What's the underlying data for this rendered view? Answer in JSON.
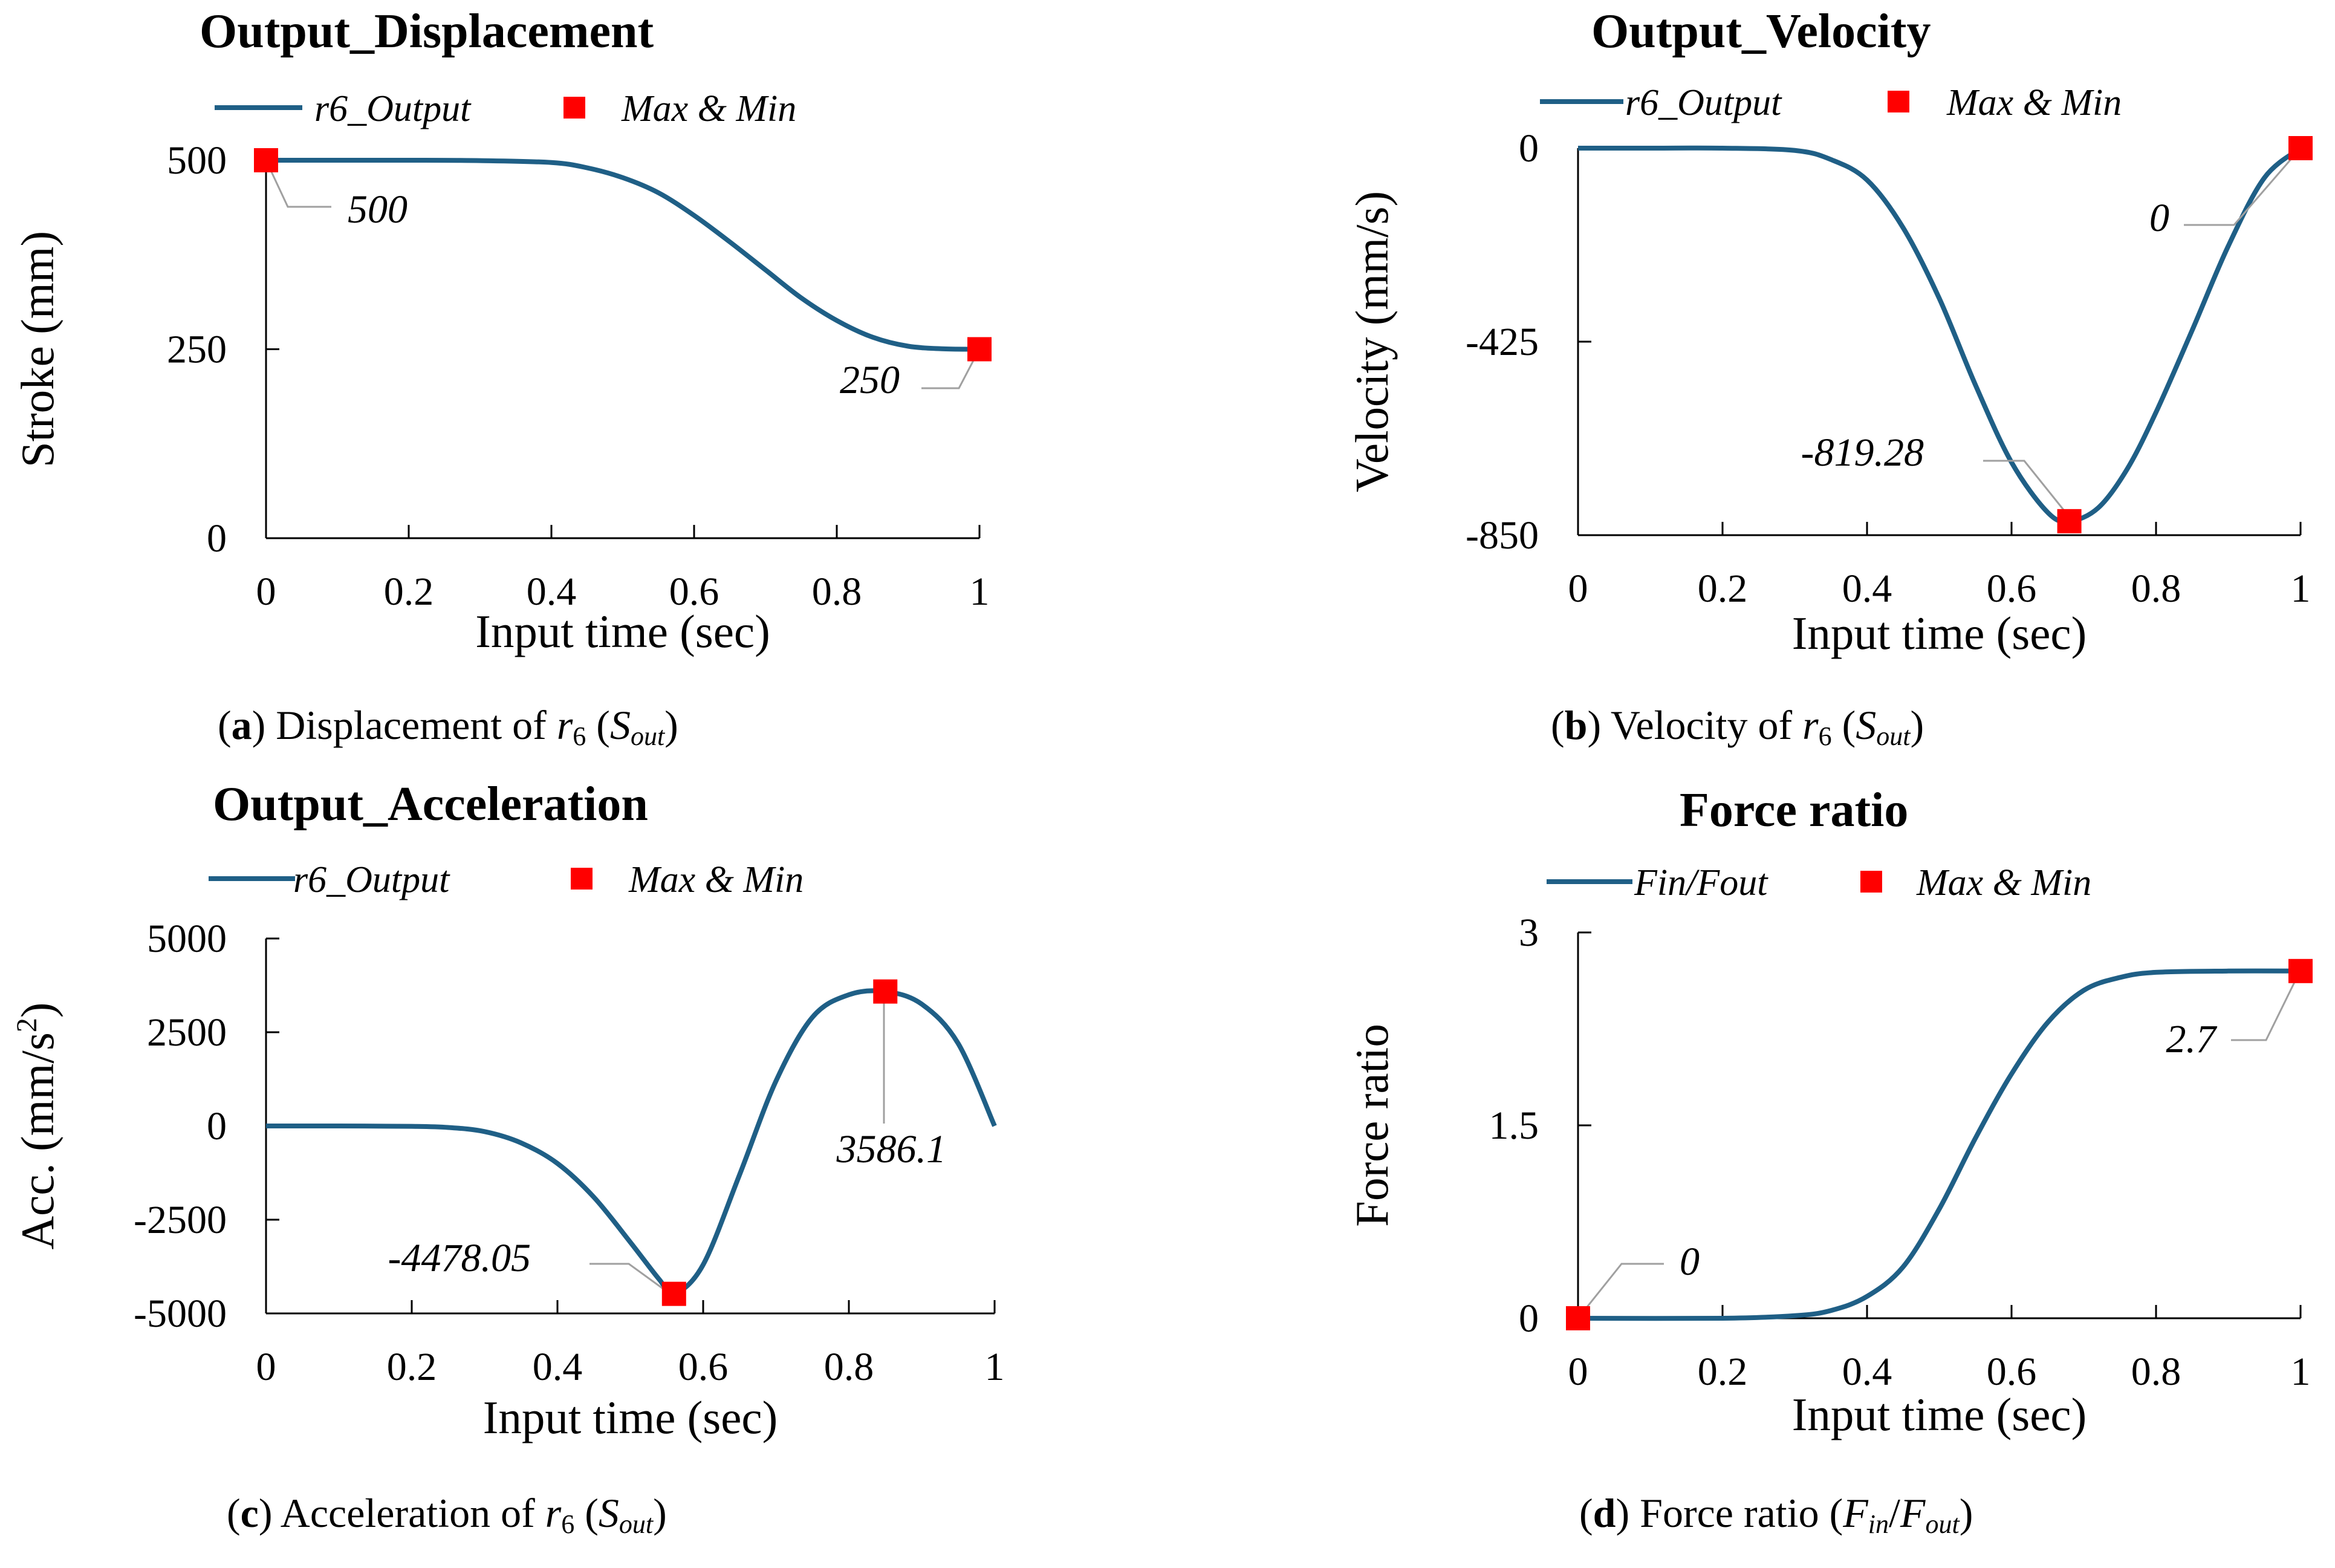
{
  "palette": {
    "line": "#1F5F86",
    "marker": "#FF0000",
    "axis": "#000000",
    "leader": "#A0A0A0"
  },
  "chart_data": [
    {
      "type": "line",
      "title": "Output_Displacement",
      "xlabel": "Input time (sec)",
      "ylabel": "Stroke (mm)",
      "xlim": [
        0,
        1
      ],
      "ylim": [
        0,
        500
      ],
      "xticks": [
        "0",
        "0.2",
        "0.4",
        "0.6",
        "0.8",
        "1"
      ],
      "yticks": [
        "0",
        "250",
        "500"
      ],
      "legend": [
        "r6_Output",
        "Max & Min"
      ],
      "series": [
        {
          "name": "r6_Output",
          "x": [
            0,
            0.1,
            0.2,
            0.3,
            0.4,
            0.45,
            0.5,
            0.55,
            0.6,
            0.65,
            0.7,
            0.75,
            0.8,
            0.85,
            0.9,
            0.95,
            1
          ],
          "y": [
            500,
            500,
            500,
            499.5,
            497,
            490,
            477,
            457,
            427,
            392,
            355,
            318,
            288,
            266,
            254,
            250.5,
            250
          ]
        }
      ],
      "markers": [
        {
          "x": 0,
          "y": 500,
          "label": "500"
        },
        {
          "x": 1,
          "y": 250,
          "label": "250"
        }
      ],
      "caption": {
        "letter": "a",
        "text": "Displacement of",
        "var": "r",
        "var_sub": "6",
        "paren_main": "S",
        "paren_sub": "out"
      }
    },
    {
      "type": "line",
      "title": "Output_Velocity",
      "xlabel": "Input time (sec)",
      "ylabel": "Velocity (mm/s)",
      "xlim": [
        0,
        1
      ],
      "ylim": [
        -850,
        0
      ],
      "xticks": [
        "0",
        "0.2",
        "0.4",
        "0.6",
        "0.8",
        "1"
      ],
      "yticks": [
        "0",
        "-425",
        "-850"
      ],
      "legend": [
        "r6_Output",
        "Max & Min"
      ],
      "series": [
        {
          "name": "r6_Output",
          "x": [
            0,
            0.1,
            0.2,
            0.3,
            0.35,
            0.4,
            0.45,
            0.5,
            0.55,
            0.6,
            0.65,
            0.68,
            0.72,
            0.76,
            0.8,
            0.85,
            0.9,
            0.95,
            1
          ],
          "y": [
            0,
            0,
            0,
            -5,
            -25,
            -70,
            -175,
            -330,
            -520,
            -690,
            -800,
            -819.28,
            -790,
            -705,
            -580,
            -400,
            -215,
            -65,
            0
          ]
        }
      ],
      "markers": [
        {
          "x": 1,
          "y": 0,
          "label": "0"
        },
        {
          "x": 0.68,
          "y": -819.28,
          "label": "-819.28"
        }
      ],
      "caption": {
        "letter": "b",
        "text": "Velocity of",
        "var": "r",
        "var_sub": "6",
        "paren_main": "S",
        "paren_sub": "out"
      }
    },
    {
      "type": "line",
      "title": "Output_Acceleration",
      "xlabel": "Input time (sec)",
      "ylabel": "Acc. (mm/s",
      "ylabel_sup": "2",
      "ylabel_end": ")",
      "xlim": [
        0,
        1
      ],
      "ylim": [
        -5000,
        5000
      ],
      "xticks": [
        "0",
        "0.2",
        "0.4",
        "0.6",
        "0.8",
        "1"
      ],
      "yticks": [
        "5000",
        "2500",
        "0",
        "-2500",
        "-5000"
      ],
      "legend": [
        "r6_Output",
        "Max & Min"
      ],
      "series": [
        {
          "name": "r6_Output",
          "x": [
            0,
            0.1,
            0.2,
            0.25,
            0.3,
            0.35,
            0.4,
            0.45,
            0.5,
            0.54,
            0.56,
            0.6,
            0.65,
            0.7,
            0.75,
            0.8,
            0.85,
            0.9,
            0.95,
            1
          ],
          "y": [
            0,
            0,
            -10,
            -40,
            -150,
            -450,
            -1000,
            -1900,
            -3100,
            -4100,
            -4478.05,
            -3700,
            -1300,
            1200,
            2900,
            3500,
            3586.1,
            3250,
            2200,
            0
          ]
        }
      ],
      "markers": [
        {
          "x": 0.85,
          "y": 3586.1,
          "label": "3586.1"
        },
        {
          "x": 0.56,
          "y": -4478.05,
          "label": "-4478.05"
        }
      ],
      "caption": {
        "letter": "c",
        "text": "Acceleration of",
        "var": "r",
        "var_sub": "6",
        "paren_main": "S",
        "paren_sub": "out"
      }
    },
    {
      "type": "line",
      "title": "Force ratio",
      "xlabel": "Input time (sec)",
      "ylabel": "Force ratio",
      "xlim": [
        0,
        1
      ],
      "ylim": [
        0,
        3
      ],
      "xticks": [
        "0",
        "0.2",
        "0.4",
        "0.6",
        "0.8",
        "1"
      ],
      "yticks": [
        "3",
        "1.5",
        "0"
      ],
      "legend": [
        "Fin/Fout",
        "Max & Min"
      ],
      "series": [
        {
          "name": "Fin/Fout",
          "x": [
            0,
            0.2,
            0.3,
            0.35,
            0.4,
            0.45,
            0.5,
            0.55,
            0.6,
            0.65,
            0.7,
            0.75,
            0.8,
            0.9,
            1
          ],
          "y": [
            0,
            0,
            0.02,
            0.06,
            0.17,
            0.4,
            0.85,
            1.4,
            1.9,
            2.3,
            2.55,
            2.65,
            2.69,
            2.7,
            2.7
          ]
        }
      ],
      "markers": [
        {
          "x": 0,
          "y": 0,
          "label": "0"
        },
        {
          "x": 1,
          "y": 2.7,
          "label": "2.7"
        }
      ],
      "caption": {
        "letter": "d",
        "text": "Force ratio",
        "paren_main": "F",
        "paren_sub": "in",
        "paren_main2": "F",
        "paren_sub2": "out"
      }
    }
  ]
}
